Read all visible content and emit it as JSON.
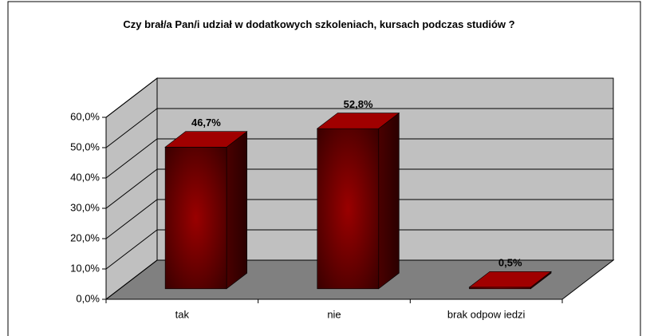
{
  "chart_data": {
    "type": "bar3d",
    "title": "Czy brał/a Pan/i udział w dodatkowych szkoleniach, kursach podczas studiów ?",
    "categories": [
      "tak",
      "nie",
      "brak odpow iedzi"
    ],
    "values": [
      46.7,
      52.8,
      0.5
    ],
    "value_labels": [
      "46,7%",
      "52,8%",
      "0,5%"
    ],
    "color": "#8b0000",
    "ylim": [
      0,
      60
    ],
    "yticks": [
      {
        "value": 0,
        "label": "0,0%"
      },
      {
        "value": 10,
        "label": "10,0%"
      },
      {
        "value": 20,
        "label": "20,0%"
      },
      {
        "value": 30,
        "label": "30,0%"
      },
      {
        "value": 40,
        "label": "40,0%"
      },
      {
        "value": 50,
        "label": "50,0%"
      },
      {
        "value": 60,
        "label": "60,0%"
      }
    ],
    "grid": true
  }
}
